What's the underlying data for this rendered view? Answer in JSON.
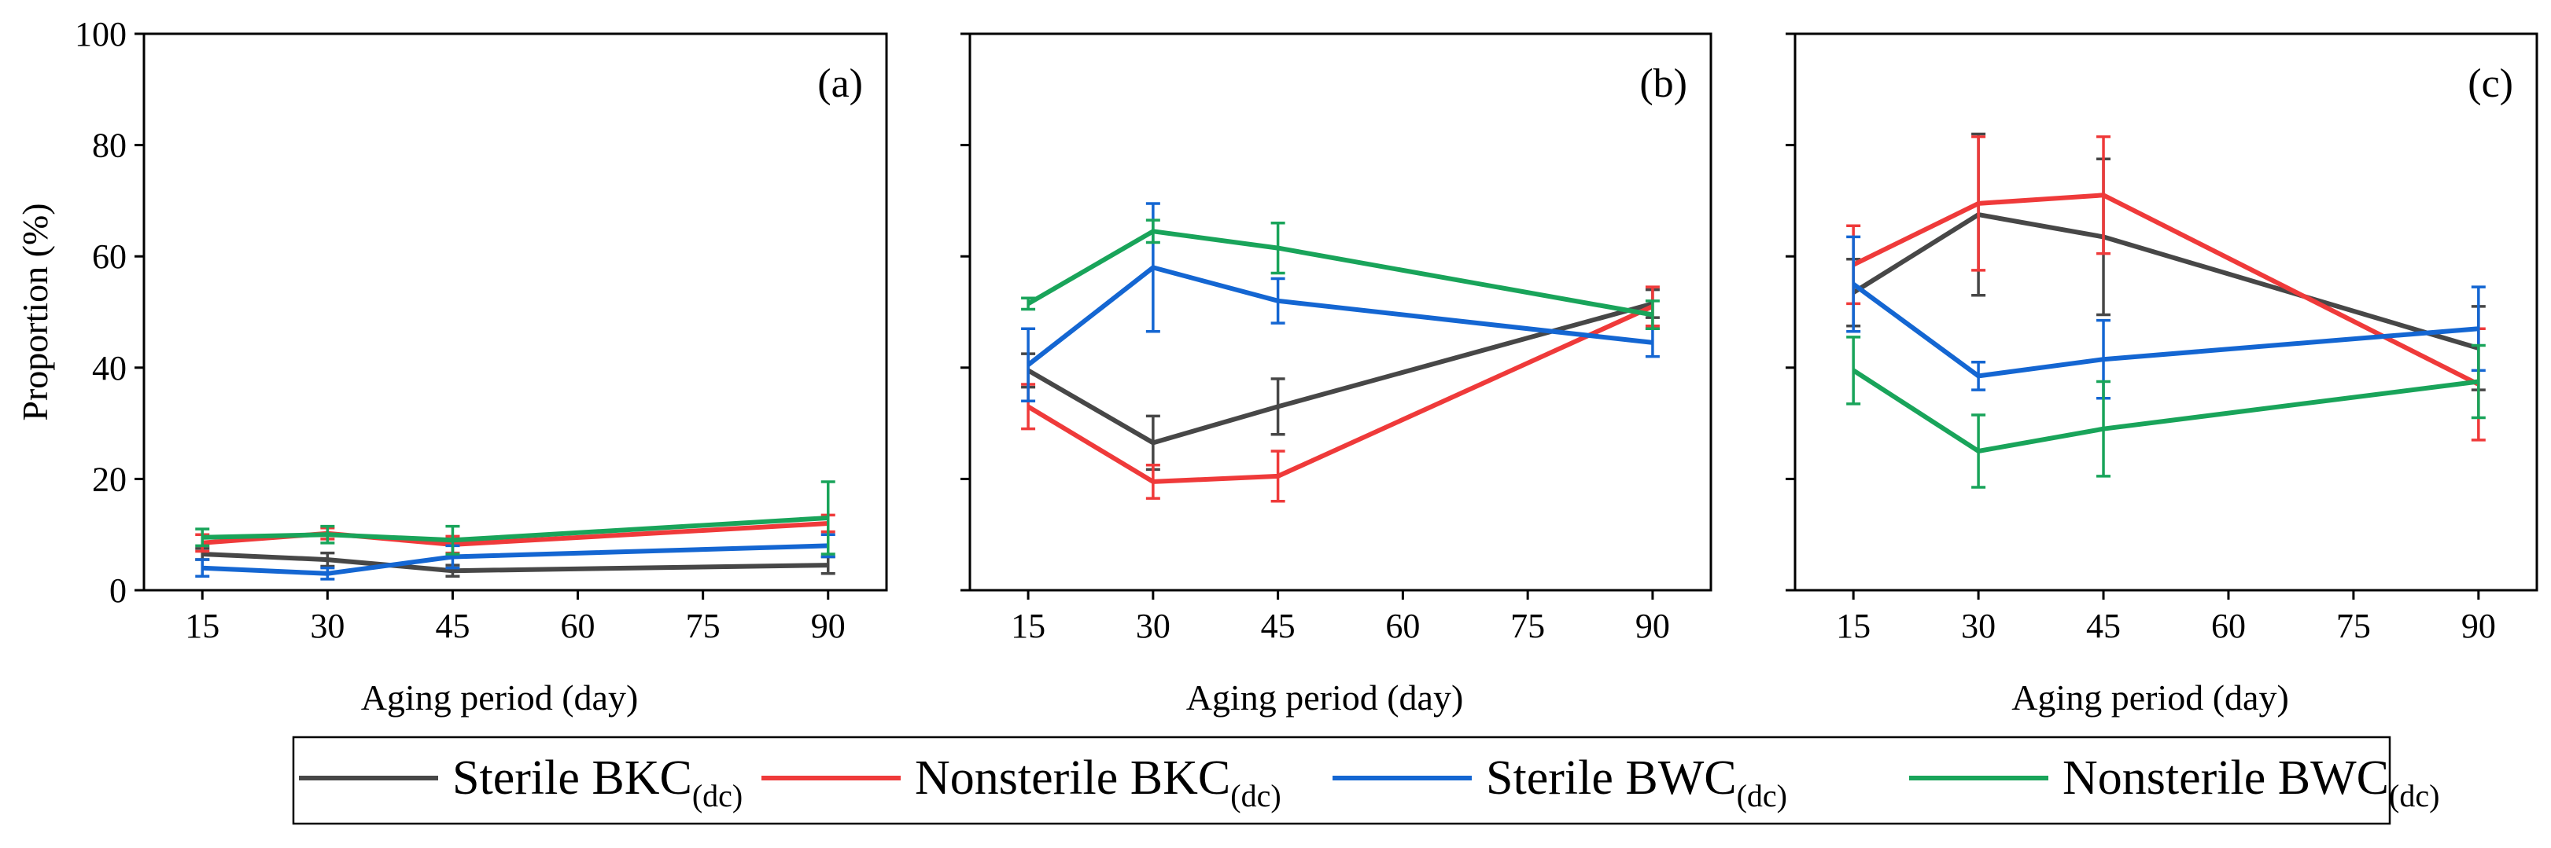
{
  "chart_data": {
    "type": "line",
    "x_ticks": [
      15,
      30,
      45,
      60,
      75,
      90
    ],
    "x": [
      15,
      30,
      45,
      90
    ],
    "xlim": [
      8,
      97
    ],
    "ylim": [
      0,
      100
    ],
    "y_ticks": [
      0,
      20,
      40,
      60,
      80,
      100
    ],
    "ylabel": "Proportion (%)",
    "xlabel": "Aging period (day)",
    "panels": [
      {
        "label": "(a)",
        "series": [
          {
            "name": "Sterile BKC(dc)",
            "values": [
              6.5,
              5.5,
              3.5,
              4.5
            ],
            "errors": [
              1.0,
              1.2,
              1.0,
              1.5
            ]
          },
          {
            "name": "Nonsterile BKC(dc)",
            "values": [
              8.5,
              10.2,
              8.2,
              12.0
            ],
            "errors": [
              1.5,
              1.0,
              1.5,
              1.5
            ]
          },
          {
            "name": "Sterile BWC(dc)",
            "values": [
              4.0,
              3.0,
              6.0,
              8.0
            ],
            "errors": [
              1.5,
              1.0,
              2.0,
              2.0
            ]
          },
          {
            "name": "Nonsterile BWC(dc)",
            "values": [
              9.5,
              10.0,
              9.0,
              13.0
            ],
            "errors": [
              1.5,
              1.5,
              2.5,
              6.5
            ]
          }
        ]
      },
      {
        "label": "(b)",
        "series": [
          {
            "name": "Sterile BKC(dc)",
            "values": [
              39.5,
              26.5,
              33.0,
              51.5
            ],
            "errors": [
              3.0,
              4.8,
              5.0,
              2.5
            ]
          },
          {
            "name": "Nonsterile BKC(dc)",
            "values": [
              33.0,
              19.5,
              20.5,
              51.0
            ],
            "errors": [
              4.0,
              3.0,
              4.5,
              3.5
            ]
          },
          {
            "name": "Sterile BWC(dc)",
            "values": [
              40.5,
              58.0,
              52.0,
              44.5
            ],
            "errors": [
              6.5,
              11.5,
              4.0,
              2.5
            ]
          },
          {
            "name": "Nonsterile BWC(dc)",
            "values": [
              51.5,
              64.5,
              61.5,
              49.5
            ],
            "errors": [
              1.0,
              2.0,
              4.5,
              2.5
            ]
          }
        ]
      },
      {
        "label": "(c)",
        "series": [
          {
            "name": "Sterile BKC(dc)",
            "values": [
              53.5,
              67.5,
              63.5,
              43.5
            ],
            "errors": [
              6.0,
              14.5,
              14.0,
              7.5
            ]
          },
          {
            "name": "Nonsterile BKC(dc)",
            "values": [
              58.5,
              69.5,
              71.0,
              37.0
            ],
            "errors": [
              7.0,
              12.0,
              10.5,
              10.0
            ]
          },
          {
            "name": "Sterile BWC(dc)",
            "values": [
              55.0,
              38.5,
              41.5,
              47.0
            ],
            "errors": [
              8.5,
              2.5,
              7.0,
              7.5
            ]
          },
          {
            "name": "Nonsterile BWC(dc)",
            "values": [
              39.5,
              25.0,
              29.0,
              37.5
            ],
            "errors": [
              6.0,
              6.5,
              8.5,
              6.5
            ]
          }
        ]
      }
    ],
    "legend": {
      "placement": "bottom",
      "entries": [
        {
          "main": "Sterile BKC",
          "sub": "(dc)",
          "color": "#474747"
        },
        {
          "main": "Nonsterile BKC",
          "sub": "(dc)",
          "color": "#ef3a3a"
        },
        {
          "main": "Sterile BWC",
          "sub": "(dc)",
          "color": "#1466d2"
        },
        {
          "main": "Nonsterile BWC",
          "sub": "(dc)",
          "color": "#19a45a"
        }
      ]
    },
    "colors": [
      "#474747",
      "#ef3a3a",
      "#1466d2",
      "#19a45a"
    ]
  }
}
